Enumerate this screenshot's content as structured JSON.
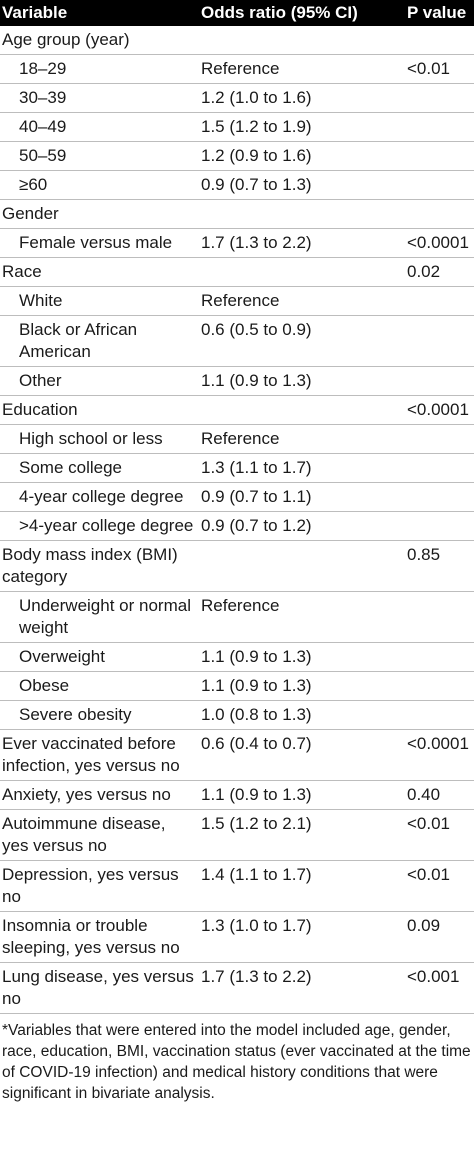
{
  "header": {
    "variable": "Variable",
    "odds_ratio": "Odds ratio (95% CI)",
    "p_value": "P value"
  },
  "rows": [
    {
      "label": "Age group (year)",
      "or": "",
      "p": "",
      "indent": false
    },
    {
      "label": "18–29",
      "or": "Reference",
      "p": "<0.01",
      "indent": true
    },
    {
      "label": "30–39",
      "or": "1.2 (1.0 to 1.6)",
      "p": "",
      "indent": true
    },
    {
      "label": "40–49",
      "or": "1.5 (1.2 to 1.9)",
      "p": "",
      "indent": true
    },
    {
      "label": "50–59",
      "or": "1.2 (0.9 to 1.6)",
      "p": "",
      "indent": true
    },
    {
      "label": "≥60",
      "or": "0.9 (0.7 to 1.3)",
      "p": "",
      "indent": true
    },
    {
      "label": "Gender",
      "or": "",
      "p": "",
      "indent": false
    },
    {
      "label": "Female versus male",
      "or": "1.7 (1.3 to 2.2)",
      "p": "<0.0001",
      "indent": true
    },
    {
      "label": "Race",
      "or": "",
      "p": "0.02",
      "indent": false
    },
    {
      "label": "White",
      "or": "Reference",
      "p": "",
      "indent": true
    },
    {
      "label": "Black or African American",
      "or": "0.6 (0.5 to 0.9)",
      "p": "",
      "indent": true
    },
    {
      "label": "Other",
      "or": "1.1 (0.9 to 1.3)",
      "p": "",
      "indent": true
    },
    {
      "label": "Education",
      "or": "",
      "p": "<0.0001",
      "indent": false
    },
    {
      "label": "High school or less",
      "or": "Reference",
      "p": "",
      "indent": true
    },
    {
      "label": "Some college",
      "or": "1.3 (1.1 to 1.7)",
      "p": "",
      "indent": true
    },
    {
      "label": "4-year college degree",
      "or": "0.9 (0.7 to 1.1)",
      "p": "",
      "indent": true
    },
    {
      "label": ">4-year college degree",
      "or": "0.9 (0.7 to 1.2)",
      "p": "",
      "indent": true
    },
    {
      "label": "Body mass index (BMI) category",
      "or": "",
      "p": "0.85",
      "indent": false
    },
    {
      "label": "Underweight or normal weight",
      "or": "Reference",
      "p": "",
      "indent": true
    },
    {
      "label": "Overweight",
      "or": "1.1 (0.9 to 1.3)",
      "p": "",
      "indent": true
    },
    {
      "label": "Obese",
      "or": "1.1 (0.9 to 1.3)",
      "p": "",
      "indent": true
    },
    {
      "label": "Severe obesity",
      "or": "1.0 (0.8 to 1.3)",
      "p": "",
      "indent": true
    },
    {
      "label": "Ever vaccinated before infection, yes versus no",
      "or": "0.6 (0.4 to 0.7)",
      "p": "<0.0001",
      "indent": false
    },
    {
      "label": "Anxiety, yes versus no",
      "or": "1.1 (0.9 to 1.3)",
      "p": "0.40",
      "indent": false
    },
    {
      "label": "Autoimmune disease, yes versus no",
      "or": "1.5 (1.2 to 2.1)",
      "p": "<0.01",
      "indent": false
    },
    {
      "label": "Depression, yes versus no",
      "or": "1.4 (1.1 to 1.7)",
      "p": "<0.01",
      "indent": false
    },
    {
      "label": "Insomnia or trouble sleeping, yes versus no",
      "or": "1.3 (1.0 to 1.7)",
      "p": "0.09",
      "indent": false
    },
    {
      "label": "Lung disease, yes versus no",
      "or": "1.7 (1.3 to 2.2)",
      "p": "<0.001",
      "indent": false
    }
  ],
  "footnote": "*Variables that were entered into the model included age, gender, race, education, BMI, vaccination status (ever vaccinated at the time of COVID-19 infection) and medical history conditions that were significant in bivariate analysis."
}
